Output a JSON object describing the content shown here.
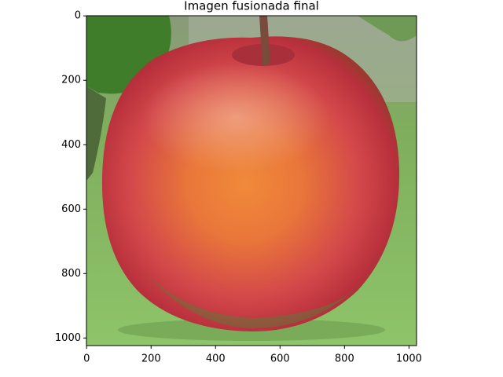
{
  "chart_data": {
    "type": "image",
    "title": "Imagen fusionada final",
    "xlim": [
      -0.5,
      1023.5
    ],
    "xticks": [
      0,
      200,
      400,
      600,
      800,
      1000
    ],
    "ylim": [
      1023.5,
      -0.5
    ],
    "yticks": [
      0,
      200,
      400,
      600,
      800,
      1000
    ]
  }
}
